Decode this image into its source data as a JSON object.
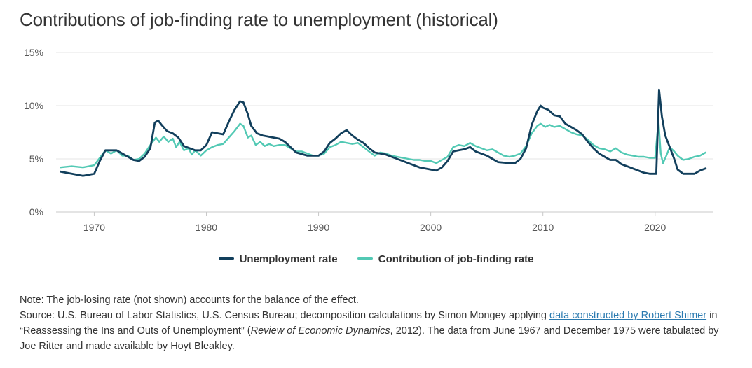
{
  "chart_data": {
    "type": "line",
    "title": "Contributions of job-finding rate to unemployment (historical)",
    "xlabel": "",
    "ylabel": "",
    "xlim": [
      1966.6,
      2025.2
    ],
    "ylim": [
      0,
      15
    ],
    "x_ticks": [
      1970,
      1980,
      1990,
      2000,
      2010,
      2020
    ],
    "y_ticks": [
      0,
      5,
      10,
      15
    ],
    "y_tick_labels": [
      "0%",
      "5%",
      "10%",
      "15%"
    ],
    "grid": "horizontal",
    "legend_position": "bottom",
    "series": [
      {
        "name": "Unemployment rate",
        "color": "#123f5c",
        "points": [
          [
            1967.0,
            3.8
          ],
          [
            1968.0,
            3.6
          ],
          [
            1969.0,
            3.4
          ],
          [
            1970.0,
            3.6
          ],
          [
            1970.5,
            4.8
          ],
          [
            1971.0,
            5.8
          ],
          [
            1972.0,
            5.8
          ],
          [
            1972.5,
            5.5
          ],
          [
            1973.5,
            4.9
          ],
          [
            1974.0,
            4.8
          ],
          [
            1974.5,
            5.2
          ],
          [
            1975.0,
            6.0
          ],
          [
            1975.4,
            8.4
          ],
          [
            1975.7,
            8.6
          ],
          [
            1976.0,
            8.2
          ],
          [
            1976.5,
            7.6
          ],
          [
            1977.0,
            7.4
          ],
          [
            1977.5,
            7.0
          ],
          [
            1978.0,
            6.2
          ],
          [
            1978.5,
            6.0
          ],
          [
            1979.0,
            5.8
          ],
          [
            1979.5,
            5.8
          ],
          [
            1980.0,
            6.3
          ],
          [
            1980.5,
            7.5
          ],
          [
            1981.0,
            7.4
          ],
          [
            1981.5,
            7.3
          ],
          [
            1982.0,
            8.5
          ],
          [
            1982.5,
            9.6
          ],
          [
            1983.0,
            10.4
          ],
          [
            1983.3,
            10.3
          ],
          [
            1983.7,
            9.2
          ],
          [
            1984.0,
            8.1
          ],
          [
            1984.5,
            7.4
          ],
          [
            1985.0,
            7.2
          ],
          [
            1985.5,
            7.1
          ],
          [
            1986.0,
            7.0
          ],
          [
            1986.5,
            6.9
          ],
          [
            1987.0,
            6.6
          ],
          [
            1987.5,
            6.1
          ],
          [
            1988.0,
            5.6
          ],
          [
            1989.0,
            5.3
          ],
          [
            1990.0,
            5.3
          ],
          [
            1990.5,
            5.7
          ],
          [
            1991.0,
            6.5
          ],
          [
            1991.5,
            6.9
          ],
          [
            1992.0,
            7.4
          ],
          [
            1992.5,
            7.7
          ],
          [
            1993.0,
            7.2
          ],
          [
            1993.5,
            6.8
          ],
          [
            1994.0,
            6.5
          ],
          [
            1994.5,
            6.0
          ],
          [
            1995.0,
            5.6
          ],
          [
            1996.0,
            5.4
          ],
          [
            1997.0,
            5.0
          ],
          [
            1998.0,
            4.6
          ],
          [
            1999.0,
            4.2
          ],
          [
            2000.0,
            4.0
          ],
          [
            2000.5,
            3.9
          ],
          [
            2001.0,
            4.2
          ],
          [
            2001.5,
            4.8
          ],
          [
            2002.0,
            5.7
          ],
          [
            2002.5,
            5.8
          ],
          [
            2003.0,
            5.9
          ],
          [
            2003.5,
            6.1
          ],
          [
            2004.0,
            5.7
          ],
          [
            2005.0,
            5.3
          ],
          [
            2006.0,
            4.7
          ],
          [
            2007.0,
            4.6
          ],
          [
            2007.5,
            4.6
          ],
          [
            2008.0,
            5.0
          ],
          [
            2008.5,
            6.0
          ],
          [
            2009.0,
            8.2
          ],
          [
            2009.5,
            9.5
          ],
          [
            2009.8,
            10.0
          ],
          [
            2010.0,
            9.8
          ],
          [
            2010.5,
            9.6
          ],
          [
            2011.0,
            9.1
          ],
          [
            2011.5,
            9.0
          ],
          [
            2012.0,
            8.3
          ],
          [
            2012.5,
            8.0
          ],
          [
            2013.0,
            7.7
          ],
          [
            2013.5,
            7.3
          ],
          [
            2014.0,
            6.6
          ],
          [
            2014.5,
            6.0
          ],
          [
            2015.0,
            5.5
          ],
          [
            2015.5,
            5.2
          ],
          [
            2016.0,
            4.9
          ],
          [
            2016.5,
            4.9
          ],
          [
            2017.0,
            4.5
          ],
          [
            2017.5,
            4.3
          ],
          [
            2018.0,
            4.1
          ],
          [
            2018.5,
            3.9
          ],
          [
            2019.0,
            3.7
          ],
          [
            2019.5,
            3.6
          ],
          [
            2020.1,
            3.6
          ],
          [
            2020.35,
            11.5
          ],
          [
            2020.6,
            9.0
          ],
          [
            2020.9,
            7.2
          ],
          [
            2021.3,
            6.1
          ],
          [
            2021.7,
            5.0
          ],
          [
            2022.0,
            4.0
          ],
          [
            2022.5,
            3.6
          ],
          [
            2023.0,
            3.6
          ],
          [
            2023.5,
            3.6
          ],
          [
            2024.0,
            3.9
          ],
          [
            2024.5,
            4.1
          ]
        ]
      },
      {
        "name": "Contribution of job-finding rate",
        "color": "#52c9b4",
        "points": [
          [
            1967.0,
            4.2
          ],
          [
            1968.0,
            4.3
          ],
          [
            1969.0,
            4.2
          ],
          [
            1970.0,
            4.4
          ],
          [
            1970.5,
            5.1
          ],
          [
            1971.0,
            5.8
          ],
          [
            1971.5,
            5.5
          ],
          [
            1972.0,
            5.8
          ],
          [
            1972.5,
            5.3
          ],
          [
            1973.0,
            5.3
          ],
          [
            1973.5,
            4.9
          ],
          [
            1974.0,
            5.0
          ],
          [
            1974.5,
            5.5
          ],
          [
            1975.0,
            6.3
          ],
          [
            1975.5,
            7.0
          ],
          [
            1975.8,
            6.6
          ],
          [
            1976.2,
            7.1
          ],
          [
            1976.6,
            6.6
          ],
          [
            1977.0,
            6.9
          ],
          [
            1977.3,
            6.1
          ],
          [
            1977.6,
            6.6
          ],
          [
            1978.0,
            5.8
          ],
          [
            1978.4,
            6.0
          ],
          [
            1978.7,
            5.4
          ],
          [
            1979.0,
            5.8
          ],
          [
            1979.5,
            5.3
          ],
          [
            1980.0,
            5.8
          ],
          [
            1980.5,
            6.1
          ],
          [
            1981.0,
            6.3
          ],
          [
            1981.5,
            6.4
          ],
          [
            1982.0,
            7.0
          ],
          [
            1982.5,
            7.6
          ],
          [
            1983.0,
            8.3
          ],
          [
            1983.3,
            8.1
          ],
          [
            1983.7,
            7.0
          ],
          [
            1984.0,
            7.2
          ],
          [
            1984.4,
            6.3
          ],
          [
            1984.8,
            6.6
          ],
          [
            1985.2,
            6.2
          ],
          [
            1985.6,
            6.4
          ],
          [
            1986.0,
            6.2
          ],
          [
            1986.5,
            6.3
          ],
          [
            1987.0,
            6.3
          ],
          [
            1987.5,
            6.0
          ],
          [
            1988.0,
            5.7
          ],
          [
            1988.5,
            5.7
          ],
          [
            1989.0,
            5.5
          ],
          [
            1989.5,
            5.3
          ],
          [
            1990.0,
            5.3
          ],
          [
            1990.5,
            5.5
          ],
          [
            1991.0,
            6.1
          ],
          [
            1991.5,
            6.3
          ],
          [
            1992.0,
            6.6
          ],
          [
            1992.5,
            6.5
          ],
          [
            1993.0,
            6.4
          ],
          [
            1993.5,
            6.5
          ],
          [
            1994.0,
            6.1
          ],
          [
            1994.5,
            5.7
          ],
          [
            1995.0,
            5.3
          ],
          [
            1995.5,
            5.6
          ],
          [
            1996.0,
            5.5
          ],
          [
            1996.5,
            5.3
          ],
          [
            1997.0,
            5.2
          ],
          [
            1997.5,
            5.1
          ],
          [
            1998.0,
            5.0
          ],
          [
            1998.5,
            4.9
          ],
          [
            1999.0,
            4.9
          ],
          [
            1999.5,
            4.8
          ],
          [
            2000.0,
            4.8
          ],
          [
            2000.5,
            4.6
          ],
          [
            2001.0,
            4.9
          ],
          [
            2001.5,
            5.2
          ],
          [
            2002.0,
            6.1
          ],
          [
            2002.5,
            6.3
          ],
          [
            2003.0,
            6.2
          ],
          [
            2003.5,
            6.5
          ],
          [
            2004.0,
            6.2
          ],
          [
            2004.5,
            6.0
          ],
          [
            2005.0,
            5.8
          ],
          [
            2005.5,
            5.9
          ],
          [
            2006.0,
            5.6
          ],
          [
            2006.5,
            5.3
          ],
          [
            2007.0,
            5.2
          ],
          [
            2007.5,
            5.3
          ],
          [
            2008.0,
            5.5
          ],
          [
            2008.5,
            6.2
          ],
          [
            2009.0,
            7.4
          ],
          [
            2009.5,
            8.1
          ],
          [
            2009.8,
            8.3
          ],
          [
            2010.2,
            8.0
          ],
          [
            2010.6,
            8.2
          ],
          [
            2011.0,
            8.0
          ],
          [
            2011.5,
            8.1
          ],
          [
            2012.0,
            7.8
          ],
          [
            2012.5,
            7.5
          ],
          [
            2013.0,
            7.3
          ],
          [
            2013.5,
            7.2
          ],
          [
            2014.0,
            6.8
          ],
          [
            2014.5,
            6.3
          ],
          [
            2015.0,
            6.0
          ],
          [
            2015.5,
            5.9
          ],
          [
            2016.0,
            5.7
          ],
          [
            2016.5,
            6.0
          ],
          [
            2017.0,
            5.6
          ],
          [
            2017.5,
            5.4
          ],
          [
            2018.0,
            5.3
          ],
          [
            2018.5,
            5.2
          ],
          [
            2019.0,
            5.2
          ],
          [
            2019.5,
            5.1
          ],
          [
            2020.0,
            5.1
          ],
          [
            2020.3,
            8.6
          ],
          [
            2020.5,
            5.5
          ],
          [
            2020.7,
            4.6
          ],
          [
            2021.0,
            5.3
          ],
          [
            2021.3,
            6.1
          ],
          [
            2021.7,
            5.7
          ],
          [
            2022.0,
            5.3
          ],
          [
            2022.5,
            4.9
          ],
          [
            2023.0,
            5.0
          ],
          [
            2023.5,
            5.2
          ],
          [
            2024.0,
            5.3
          ],
          [
            2024.5,
            5.6
          ]
        ]
      }
    ]
  },
  "notes": {
    "note": "Note: The job-losing rate (not shown) accounts for the balance of the effect.",
    "source_prefix": "Source: U.S. Bureau of Labor Statistics, U.S. Census Bureau; decomposition calculations by Simon Mongey applying ",
    "source_link": "data constructed by Robert Shimer",
    "source_mid": " in “Reassessing the Ins and Outs of Unemployment” (",
    "source_journal": "Review of Economic Dynamics",
    "source_after": ", 2012). The data from June 1967 and December 1975 were tabulated by Joe Ritter and made available by Hoyt Bleakley."
  }
}
